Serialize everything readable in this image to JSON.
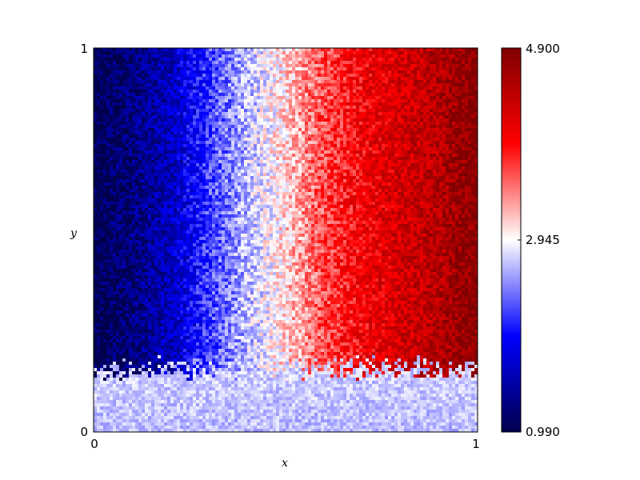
{
  "chart_data": {
    "type": "heatmap",
    "title": "",
    "xlabel": "x",
    "ylabel": "y",
    "xlim": [
      0,
      1
    ],
    "ylim": [
      0,
      1
    ],
    "x_ticks": [
      "0",
      "1"
    ],
    "y_ticks": [
      "0",
      "1"
    ],
    "grid": false,
    "colormap": "seismic",
    "colorbar": {
      "min": 0.99,
      "mid": 2.945,
      "max": 4.9,
      "tick_labels": [
        "0.990",
        "2.945",
        "4.900"
      ]
    },
    "grid_size": [
      120,
      120
    ],
    "field": {
      "description_values": "value increases left to right from about 0.99 at x=0 to 4.9 at x=1; near-uniform mid value (~2.9) in a noisy band near y=0 to y≈0.17",
      "x_profile": [
        [
          0,
          0.99
        ],
        [
          0.1,
          1.25
        ],
        [
          0.2,
          1.6
        ],
        [
          0.3,
          2.2
        ],
        [
          0.4,
          2.7
        ],
        [
          0.5,
          3.1
        ],
        [
          0.6,
          3.65
        ],
        [
          0.7,
          4.0
        ],
        [
          0.8,
          4.25
        ],
        [
          0.9,
          4.5
        ],
        [
          1.0,
          4.9
        ]
      ],
      "noise_amplitude": 0.35,
      "bottom_band": {
        "y_max": 0.13,
        "transition_top": 0.2,
        "value": 2.75
      }
    }
  }
}
